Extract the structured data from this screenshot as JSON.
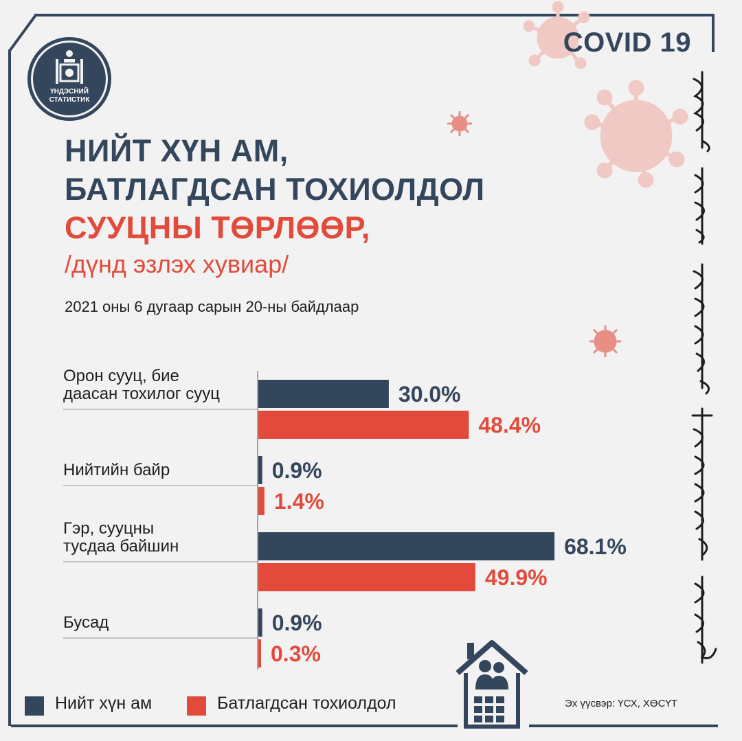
{
  "logo": {
    "line1": "ҮНДЭСНИЙ",
    "line2": "СТАТИСТИК"
  },
  "badge": "COVID 19",
  "title": {
    "line1": "НИЙТ ХҮН АМ,",
    "line2": "БАТЛАГДСАН ТОХИОЛДОЛ",
    "line3": "СУУЦНЫ ТӨРЛӨӨР,"
  },
  "subtitle": "/дүнд эзлэх хувиар/",
  "date": "2021 оны 6 дугаар сарын 20-ны байдлаар",
  "legend": {
    "population": "Нийт хүн ам",
    "cases": "Батлагдсан тохиолдол"
  },
  "source": "Эх үүсвэр: ҮСХ, ХӨСҮТ",
  "colors": {
    "population": "#34465c",
    "cases": "#e24b3b",
    "background": "#f2f2f2"
  },
  "chart_data": {
    "type": "bar",
    "orientation": "horizontal",
    "categories": [
      [
        "Орон сууц, бие",
        "даасан тохилог сууц"
      ],
      [
        "Нийтийн байр"
      ],
      [
        "Гэр, сууцны",
        "тусдаа байшин"
      ],
      [
        "Бусад"
      ]
    ],
    "series": [
      {
        "name": "Нийт хүн ам",
        "values": [
          30.0,
          0.9,
          68.1,
          0.9
        ],
        "labels": [
          "30.0%",
          "0.9%",
          "68.1%",
          "0.9%"
        ]
      },
      {
        "name": "Батлагдсан тохиолдол",
        "values": [
          48.4,
          1.4,
          49.9,
          0.3
        ],
        "labels": [
          "48.4%",
          "1.4%",
          "49.9%",
          "0.3%"
        ]
      }
    ],
    "xlim": [
      0,
      100
    ],
    "grid": false,
    "legend": "bottom-left"
  }
}
